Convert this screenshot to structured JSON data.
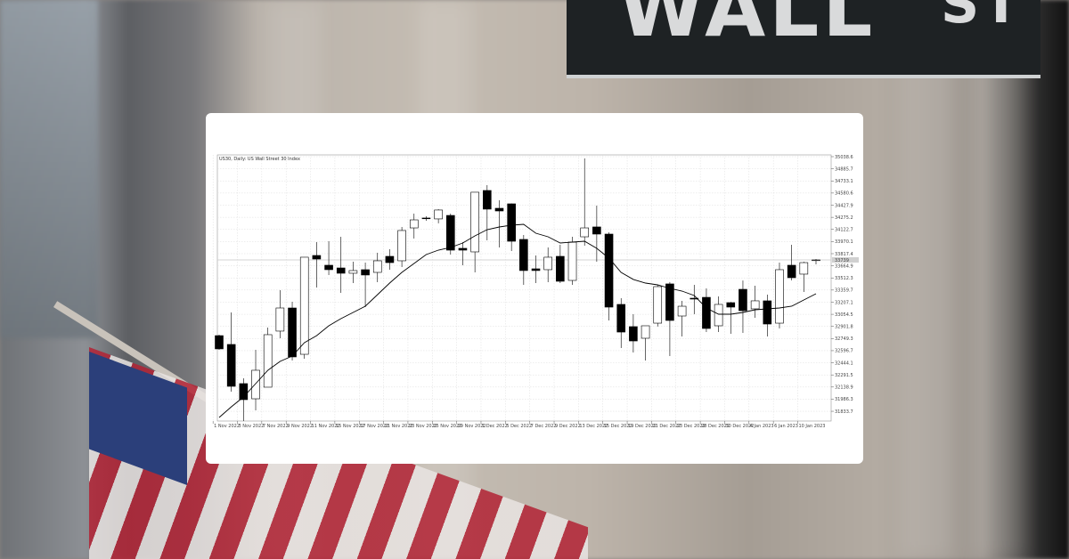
{
  "chart_data": {
    "type": "candlestick",
    "title": "US30, Daily: US Wall Street 30 Index",
    "ylim": [
      31711,
      35061
    ],
    "grid": true,
    "y_ticks": [
      "35038.6",
      "34885.7",
      "34733.1",
      "34580.6",
      "34427.9",
      "34275.2",
      "34122.7",
      "33970.1",
      "33817.4",
      "33664.9",
      "33512.3",
      "33359.7",
      "33207.1",
      "33054.5",
      "32901.8",
      "32749.3",
      "32596.7",
      "32444.1",
      "32291.5",
      "32138.9",
      "31986.3",
      "31833.7"
    ],
    "x_ticks": [
      "1 Nov 2022",
      "3 Nov 2022",
      "7 Nov 2022",
      "9 Nov 2022",
      "11 Nov 2022",
      "15 Nov 2022",
      "17 Nov 2022",
      "21 Nov 2022",
      "23 Nov 2022",
      "25 Nov 2022",
      "29 Nov 2022",
      "1 Dec 2022",
      "5 Dec 2022",
      "7 Dec 2022",
      "9 Dec 2022",
      "13 Dec 2022",
      "15 Dec 2022",
      "19 Dec 2022",
      "21 Dec 2022",
      "23 Dec 2022",
      "28 Dec 2022",
      "30 Dec 2022",
      "4 Jan 2023",
      "6 Jan 2023",
      "10 Jan 2023"
    ],
    "current_price": 33739,
    "ohlc": [
      [
        32786,
        32798,
        32608,
        32619
      ],
      [
        32675,
        33078,
        32081,
        32148
      ],
      [
        32182,
        32249,
        31711,
        31980
      ],
      [
        31991,
        32608,
        31845,
        32350
      ],
      [
        32137,
        32887,
        32137,
        32798
      ],
      [
        32843,
        33358,
        32753,
        33134
      ],
      [
        33134,
        33212,
        32473,
        32518
      ],
      [
        32551,
        33773,
        32495,
        33773
      ],
      [
        33795,
        33963,
        33392,
        33750
      ],
      [
        33672,
        33974,
        33549,
        33616
      ],
      [
        33638,
        34030,
        33324,
        33571
      ],
      [
        33571,
        33717,
        33448,
        33605
      ],
      [
        33616,
        33705,
        33145,
        33549
      ],
      [
        33582,
        33829,
        33459,
        33728
      ],
      [
        33784,
        33874,
        33616,
        33705
      ],
      [
        33728,
        34154,
        33649,
        34109
      ],
      [
        34142,
        34322,
        34008,
        34243
      ],
      [
        34266,
        34288,
        34232,
        34260
      ],
      [
        34255,
        34378,
        34199,
        34367
      ],
      [
        34299,
        34322,
        33806,
        33862
      ],
      [
        33885,
        33963,
        33672,
        33862
      ],
      [
        33840,
        34591,
        33582,
        34591
      ],
      [
        34613,
        34680,
        33986,
        34378
      ],
      [
        34389,
        34490,
        33896,
        34355
      ],
      [
        34445,
        34450,
        33851,
        33974
      ],
      [
        33997,
        34053,
        33425,
        33605
      ],
      [
        33627,
        33795,
        33448,
        33605
      ],
      [
        33616,
        33896,
        33459,
        33773
      ],
      [
        33784,
        33929,
        33448,
        33470
      ],
      [
        33481,
        34030,
        33425,
        33963
      ],
      [
        34030,
        35017,
        33918,
        34142
      ],
      [
        34154,
        34423,
        33717,
        34064
      ],
      [
        34064,
        34086,
        32977,
        33145
      ],
      [
        33179,
        33257,
        32630,
        32831
      ],
      [
        32899,
        33056,
        32574,
        32719
      ],
      [
        32753,
        32887,
        32473,
        32910
      ],
      [
        32943,
        33425,
        32900,
        33403
      ],
      [
        33437,
        33460,
        32529,
        32977
      ],
      [
        33033,
        33224,
        32775,
        33156
      ],
      [
        33257,
        33425,
        33056,
        33246
      ],
      [
        33268,
        33380,
        32831,
        32876
      ],
      [
        32910,
        33280,
        32831,
        33179
      ],
      [
        33201,
        33210,
        32809,
        33145
      ],
      [
        33369,
        33480,
        32820,
        33100
      ],
      [
        33123,
        33414,
        33011,
        33224
      ],
      [
        33224,
        33302,
        32775,
        32932
      ],
      [
        32943,
        33705,
        32876,
        33616
      ],
      [
        33672,
        33929,
        33481,
        33515
      ],
      [
        33560,
        33717,
        33336,
        33705
      ],
      [
        33739,
        33750,
        33683,
        33739
      ]
    ],
    "moving_average": [
      31756,
      31890,
      32013,
      32182,
      32350,
      32462,
      32529,
      32697,
      32786,
      32910,
      32999,
      33078,
      33156,
      33302,
      33448,
      33582,
      33694,
      33806,
      33862,
      33896,
      33952,
      34041,
      34120,
      34154,
      34176,
      34187,
      34075,
      34030,
      33952,
      33963,
      33974,
      33885,
      33761,
      33582,
      33493,
      33448,
      33425,
      33380,
      33347,
      33291,
      33134,
      33056,
      33056,
      33078,
      33112,
      33123,
      33134,
      33156,
      33235,
      33313
    ],
    "colors": {
      "bull": "#ffffff",
      "bear": "#000000",
      "outline": "#000000",
      "ma": "#000000",
      "grid": "#dcdcdc"
    }
  }
}
